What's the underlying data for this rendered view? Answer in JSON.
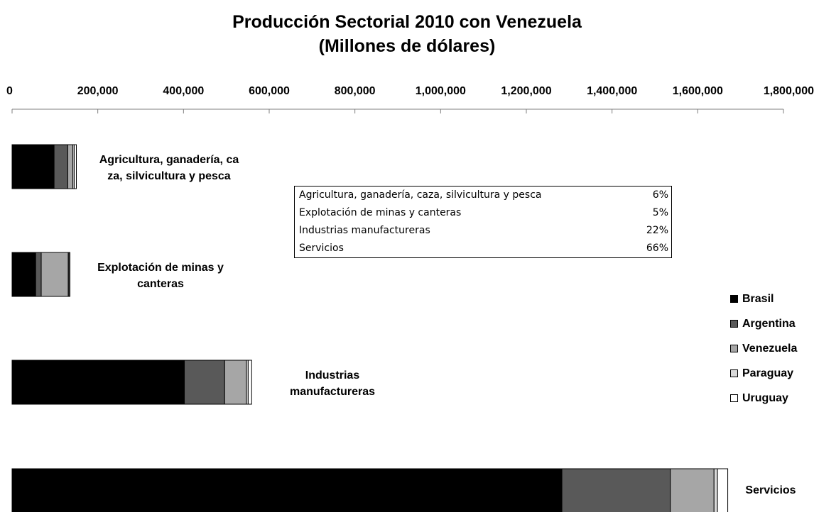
{
  "chart_data": {
    "type": "bar",
    "orientation": "horizontal",
    "stacked": true,
    "title": "Producción Sectorial 2010 con Venezuela",
    "subtitle": "(Millones de dólares)",
    "xlim": [
      0,
      1800000
    ],
    "x_ticks": [
      "0",
      "200,000",
      "400,000",
      "600,000",
      "800,000",
      "1,000,000",
      "1,200,000",
      "1,400,000",
      "1,600,000",
      "1,800,000"
    ],
    "x_axis_position": "top",
    "grid": false,
    "legend_position": "right",
    "categories": [
      "Agricultura, ganadería, caza, silvicultura y pesca",
      "Explotación de minas y canteras",
      "Industrias manufactureras",
      "Servicios"
    ],
    "category_labels": [
      [
        "Agricultura, ganadería, ca",
        "za, silvicultura y pesca"
      ],
      [
        "Explotación de minas y",
        "canteras"
      ],
      [
        "Industrias",
        "manufactureras"
      ],
      [
        "Servicios"
      ]
    ],
    "series": [
      {
        "name": "Brasil",
        "color": "#000000",
        "values": [
          98000,
          55000,
          402000,
          1283000
        ]
      },
      {
        "name": "Argentina",
        "color": "#595959",
        "values": [
          32000,
          13000,
          94000,
          253000
        ]
      },
      {
        "name": "Venezuela",
        "color": "#a6a6a6",
        "values": [
          12000,
          63000,
          51000,
          102000
        ]
      },
      {
        "name": "Paraguay",
        "color": "#d9d9d9",
        "values": [
          3000,
          2000,
          4000,
          8000
        ]
      },
      {
        "name": "Uruguay",
        "color": "#ffffff",
        "values": [
          5000,
          2000,
          8000,
          24000
        ]
      }
    ],
    "share_table": [
      {
        "label": "Agricultura, ganadería, caza, silvicultura y pesca",
        "value": "6%"
      },
      {
        "label": "Explotación de minas y canteras",
        "value": "5%"
      },
      {
        "label": "Industrias manufactureras",
        "value": "22%"
      },
      {
        "label": "Servicios",
        "value": "66%"
      }
    ]
  }
}
